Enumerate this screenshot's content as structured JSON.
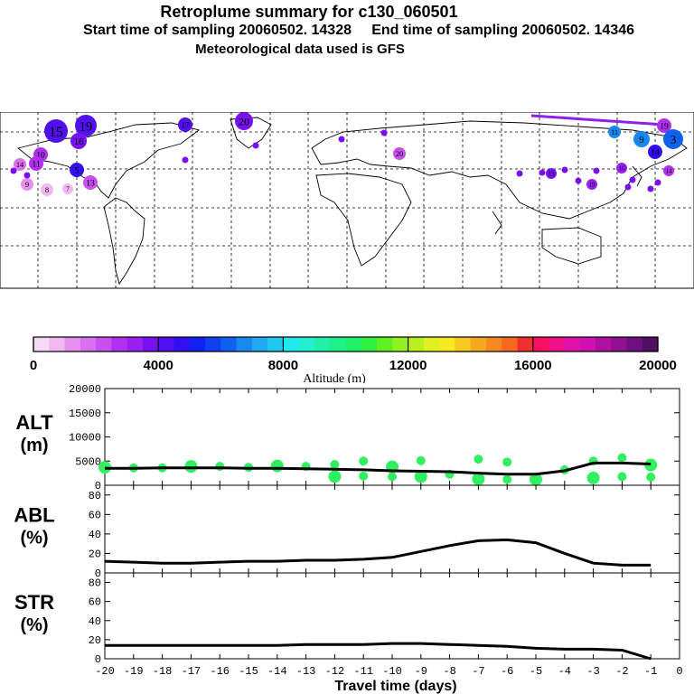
{
  "header": {
    "title": "Retroplume summary for c130_060501",
    "sampling": "Start time of sampling 20060502. 14328     End time of sampling 20060502. 14346",
    "met": "Meteorological data used is GFS"
  },
  "colorbar": {
    "label": "Altitude (m)",
    "ticks": [
      "0",
      "4000",
      "8000",
      "12000",
      "16000",
      "20000"
    ],
    "tick_values": [
      0,
      4000,
      8000,
      12000,
      16000,
      20000
    ],
    "colors": [
      "#f5d8f5",
      "#f0b8f0",
      "#e890f0",
      "#d870f0",
      "#c850f0",
      "#b030f0",
      "#9820f0",
      "#7810f0",
      "#5010f0",
      "#3010f0",
      "#1020f0",
      "#1040f0",
      "#1060f0",
      "#1888f0",
      "#20a8f0",
      "#20c8f0",
      "#20e8f0",
      "#20f0d0",
      "#20f0a8",
      "#20f088",
      "#20f068",
      "#30f040",
      "#60f020",
      "#90f020",
      "#b8f020",
      "#e0f020",
      "#f8e820",
      "#f8c820",
      "#f8a820",
      "#f88820",
      "#f86820",
      "#f03030",
      "#f81060",
      "#f01088",
      "#e010a8",
      "#d010b0",
      "#b010a0",
      "#901090",
      "#701080",
      "#501060"
    ]
  },
  "map_markers": [
    {
      "label": "15",
      "color": "#5010f0"
    },
    {
      "label": "19",
      "color": "#5010f0"
    },
    {
      "label": "16",
      "color": "#7810f0"
    },
    {
      "label": "20",
      "color": "#7810f0"
    },
    {
      "label": "17",
      "color": "#5010f0"
    },
    {
      "label": "10",
      "color": "#b030f0"
    },
    {
      "label": "11",
      "color": "#b030f0"
    },
    {
      "label": "14",
      "color": "#d870f0"
    },
    {
      "label": "8",
      "color": "#f0b8f0"
    },
    {
      "label": "9",
      "color": "#e890f0"
    },
    {
      "label": "7",
      "color": "#f0b8f0"
    },
    {
      "label": "5",
      "color": "#3010f0"
    },
    {
      "label": "13",
      "color": "#c850f0"
    },
    {
      "label": "20",
      "color": "#c850f0"
    },
    {
      "label": "19",
      "color": "#b030f0"
    },
    {
      "label": "11",
      "color": "#1888f0"
    },
    {
      "label": "9",
      "color": "#1888f0"
    },
    {
      "label": "14",
      "color": "#3010f0"
    },
    {
      "label": "3",
      "color": "#1060f0"
    },
    {
      "label": "13",
      "color": "#7810f0"
    },
    {
      "label": "19",
      "color": "#9820f0"
    },
    {
      "label": "16",
      "color": "#9820f0"
    },
    {
      "label": "14",
      "color": "#b030f0"
    }
  ],
  "panels_axis": {
    "xlabel": "Travel time (days)",
    "xticks": [
      "-20",
      "-19",
      "-18",
      "-17",
      "-16",
      "-15",
      "-14",
      "-13",
      "-12",
      "-11",
      "-10",
      "-9",
      "-8",
      "-7",
      "-6",
      "-5",
      "-4",
      "-3",
      "-2",
      "-1",
      "0"
    ]
  },
  "chart_data": [
    {
      "type": "line",
      "name": "ALT",
      "title": "ALT",
      "unit": "(m)",
      "ylim": [
        0,
        20000
      ],
      "yticks": [
        "0",
        "5000",
        "10000",
        "15000",
        "20000"
      ],
      "x": [
        -20,
        -19,
        -18,
        -17,
        -16,
        -15,
        -14,
        -13,
        -12,
        -11,
        -10,
        -9,
        -8,
        -7,
        -6,
        -5,
        -4,
        -3,
        -2,
        -1
      ],
      "values": [
        3500,
        3500,
        3600,
        3600,
        3600,
        3500,
        3500,
        3400,
        3300,
        3200,
        3000,
        2900,
        2800,
        2500,
        2300,
        2300,
        3000,
        4600,
        4600,
        4400
      ],
      "scatter": [
        {
          "x": -20,
          "y": 3700
        },
        {
          "x": -19,
          "y": 3600
        },
        {
          "x": -18,
          "y": 3600
        },
        {
          "x": -17,
          "y": 3900
        },
        {
          "x": -16,
          "y": 3900
        },
        {
          "x": -15,
          "y": 3700
        },
        {
          "x": -14,
          "y": 4000
        },
        {
          "x": -13,
          "y": 3900
        },
        {
          "x": -12,
          "y": 4300
        },
        {
          "x": -12,
          "y": 1800
        },
        {
          "x": -11,
          "y": 5000
        },
        {
          "x": -11,
          "y": 1900
        },
        {
          "x": -10,
          "y": 3800
        },
        {
          "x": -10,
          "y": 1800
        },
        {
          "x": -9,
          "y": 5100
        },
        {
          "x": -9,
          "y": 1800
        },
        {
          "x": -8,
          "y": 2300
        },
        {
          "x": -7,
          "y": 5400
        },
        {
          "x": -7,
          "y": 1300
        },
        {
          "x": -6,
          "y": 4800
        },
        {
          "x": -6,
          "y": 1200
        },
        {
          "x": -5,
          "y": 1200
        },
        {
          "x": -4,
          "y": 3200
        },
        {
          "x": -3,
          "y": 5000
        },
        {
          "x": -3,
          "y": 1500
        },
        {
          "x": -2,
          "y": 5700
        },
        {
          "x": -2,
          "y": 1800
        },
        {
          "x": -1,
          "y": 4200
        },
        {
          "x": -1,
          "y": 1700
        }
      ]
    },
    {
      "type": "line",
      "name": "ABL",
      "title": "ABL",
      "unit": "(%)",
      "ylim": [
        0,
        90
      ],
      "yticks": [
        "0",
        "20",
        "40",
        "60",
        "80"
      ],
      "x": [
        -20,
        -19,
        -18,
        -17,
        -16,
        -15,
        -14,
        -13,
        -12,
        -11,
        -10,
        -9,
        -8,
        -7,
        -6,
        -5,
        -4,
        -3,
        -2,
        -1
      ],
      "values": [
        12,
        11,
        10,
        10,
        11,
        12,
        12,
        13,
        13,
        14,
        16,
        22,
        28,
        33,
        34,
        31,
        20,
        10,
        8,
        8
      ]
    },
    {
      "type": "line",
      "name": "STR",
      "title": "STR",
      "unit": "(%)",
      "ylim": [
        0,
        90
      ],
      "yticks": [
        "0",
        "20",
        "40",
        "60",
        "80"
      ],
      "x": [
        -20,
        -19,
        -18,
        -17,
        -16,
        -15,
        -14,
        -13,
        -12,
        -11,
        -10,
        -9,
        -8,
        -7,
        -6,
        -5,
        -4,
        -3,
        -2,
        -1
      ],
      "values": [
        14,
        14,
        14,
        14,
        14,
        14,
        14,
        15,
        15,
        15,
        16,
        16,
        15,
        14,
        13,
        11,
        10,
        10,
        9,
        0
      ]
    }
  ]
}
